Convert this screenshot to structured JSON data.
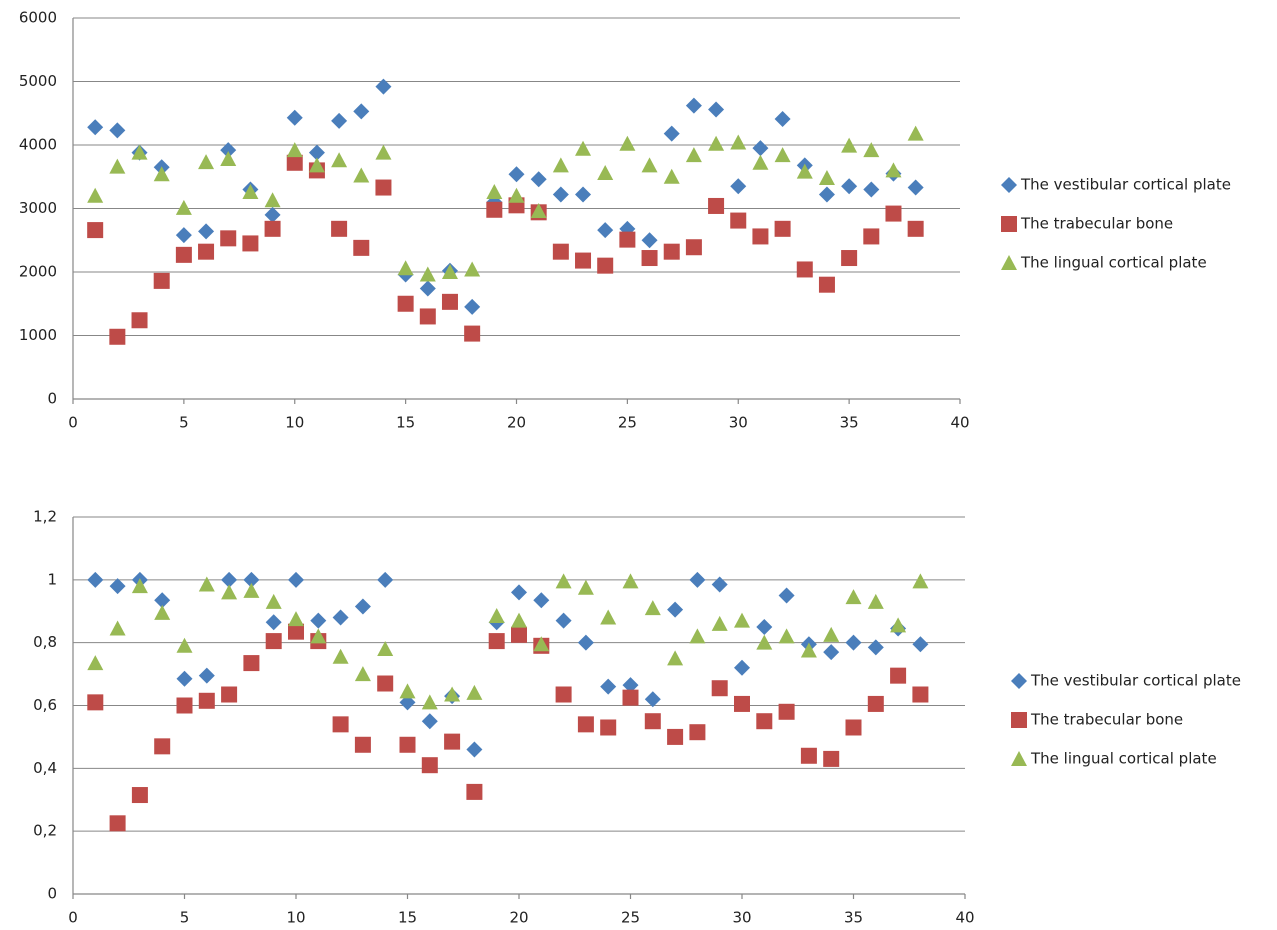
{
  "chart_data": [
    {
      "type": "scatter",
      "legend": "right",
      "grid": true,
      "x": [
        1,
        2,
        3,
        4,
        5,
        6,
        7,
        8,
        9,
        10,
        11,
        12,
        13,
        14,
        15,
        16,
        17,
        18,
        19,
        20,
        21,
        22,
        23,
        24,
        25,
        26,
        27,
        28,
        29,
        30,
        31,
        32,
        33,
        34,
        35,
        36,
        37,
        38
      ],
      "xlim": [
        0,
        40
      ],
      "xticks": [
        0,
        5,
        10,
        15,
        20,
        25,
        30,
        35,
        40
      ],
      "ylim": [
        0,
        6000
      ],
      "yticks": [
        0,
        1000,
        2000,
        3000,
        4000,
        5000,
        6000
      ],
      "series": [
        {
          "name": "The vestibular  cortical plate",
          "color": "#4a7ebb",
          "marker": "diamond",
          "values": [
            4280,
            4230,
            3880,
            3650,
            2580,
            2640,
            3920,
            3300,
            2900,
            4430,
            3880,
            4380,
            4530,
            4920,
            1960,
            1740,
            2020,
            1450,
            3100,
            3540,
            3460,
            3220,
            3220,
            2660,
            2680,
            2500,
            4180,
            4620,
            4560,
            3350,
            3950,
            4410,
            3680,
            3220,
            3350,
            3300,
            3550,
            3330
          ]
        },
        {
          "name": "The trabecular bone",
          "color": "#be4b48",
          "marker": "square",
          "values": [
            2660,
            980,
            1240,
            1860,
            2270,
            2320,
            2530,
            2450,
            2680,
            3720,
            3600,
            2680,
            2380,
            3330,
            1500,
            1300,
            1530,
            1030,
            2980,
            3050,
            2940,
            2320,
            2180,
            2100,
            2510,
            2220,
            2320,
            2390,
            3040,
            2810,
            2560,
            2680,
            2040,
            1800,
            2220,
            2560,
            2920,
            2680
          ]
        },
        {
          "name": "The lingual cortical plate",
          "color": "#98b954",
          "marker": "triangle",
          "values": [
            3200,
            3660,
            3880,
            3540,
            3010,
            3730,
            3780,
            3260,
            3130,
            3920,
            3680,
            3760,
            3520,
            3880,
            2060,
            1960,
            2000,
            2040,
            3260,
            3200,
            2960,
            3680,
            3940,
            3560,
            4020,
            3680,
            3500,
            3840,
            4020,
            4040,
            3720,
            3840,
            3580,
            3480,
            3990,
            3920,
            3600,
            4180
          ]
        }
      ]
    },
    {
      "type": "scatter",
      "legend": "right",
      "grid": true,
      "x": [
        1,
        2,
        3,
        4,
        5,
        6,
        7,
        8,
        9,
        10,
        11,
        12,
        13,
        14,
        15,
        16,
        17,
        18,
        19,
        20,
        21,
        22,
        23,
        24,
        25,
        26,
        27,
        28,
        29,
        30,
        31,
        32,
        33,
        34,
        35,
        36,
        37,
        38
      ],
      "xlim": [
        0,
        40
      ],
      "xticks": [
        0,
        5,
        10,
        15,
        20,
        25,
        30,
        35,
        40
      ],
      "ylim": [
        0,
        1.2
      ],
      "yticks": [
        0,
        {
          "value": 0.2,
          "label": "0,2"
        },
        {
          "value": 0.4,
          "label": "0,4"
        },
        {
          "value": 0.6,
          "label": "0,6"
        },
        {
          "value": 0.8,
          "label": "0,8"
        },
        1,
        {
          "value": 1.2,
          "label": "1,2"
        }
      ],
      "series": [
        {
          "name": "The vestibular  cortical plate",
          "color": "#4a7ebb",
          "marker": "diamond",
          "values": [
            1.0,
            0.98,
            1.0,
            0.935,
            0.685,
            0.695,
            1.0,
            1.0,
            0.865,
            1.0,
            0.87,
            0.88,
            0.915,
            1.0,
            0.61,
            0.55,
            0.63,
            0.46,
            0.865,
            0.96,
            0.935,
            0.87,
            0.8,
            0.66,
            0.665,
            0.62,
            0.905,
            1.0,
            0.985,
            0.72,
            0.85,
            0.95,
            0.795,
            0.77,
            0.8,
            0.785,
            0.845,
            0.795
          ]
        },
        {
          "name": "The trabecular bone",
          "color": "#be4b48",
          "marker": "square",
          "values": [
            0.61,
            0.225,
            0.315,
            0.47,
            0.6,
            0.615,
            0.635,
            0.735,
            0.805,
            0.835,
            0.805,
            0.54,
            0.475,
            0.67,
            0.475,
            0.41,
            0.485,
            0.325,
            0.805,
            0.825,
            0.79,
            0.635,
            0.54,
            0.53,
            0.625,
            0.55,
            0.5,
            0.515,
            0.655,
            0.605,
            0.55,
            0.58,
            0.44,
            0.43,
            0.53,
            0.605,
            0.695,
            0.635
          ]
        },
        {
          "name": "The lingual cortical plate",
          "color": "#98b954",
          "marker": "triangle",
          "values": [
            0.735,
            0.845,
            0.98,
            0.895,
            0.79,
            0.985,
            0.96,
            0.965,
            0.93,
            0.875,
            0.82,
            0.755,
            0.7,
            0.78,
            0.645,
            0.61,
            0.635,
            0.64,
            0.885,
            0.87,
            0.795,
            0.995,
            0.975,
            0.88,
            0.995,
            0.91,
            0.75,
            0.82,
            0.86,
            0.87,
            0.8,
            0.82,
            0.775,
            0.825,
            0.945,
            0.93,
            0.855,
            0.995
          ]
        }
      ]
    }
  ]
}
